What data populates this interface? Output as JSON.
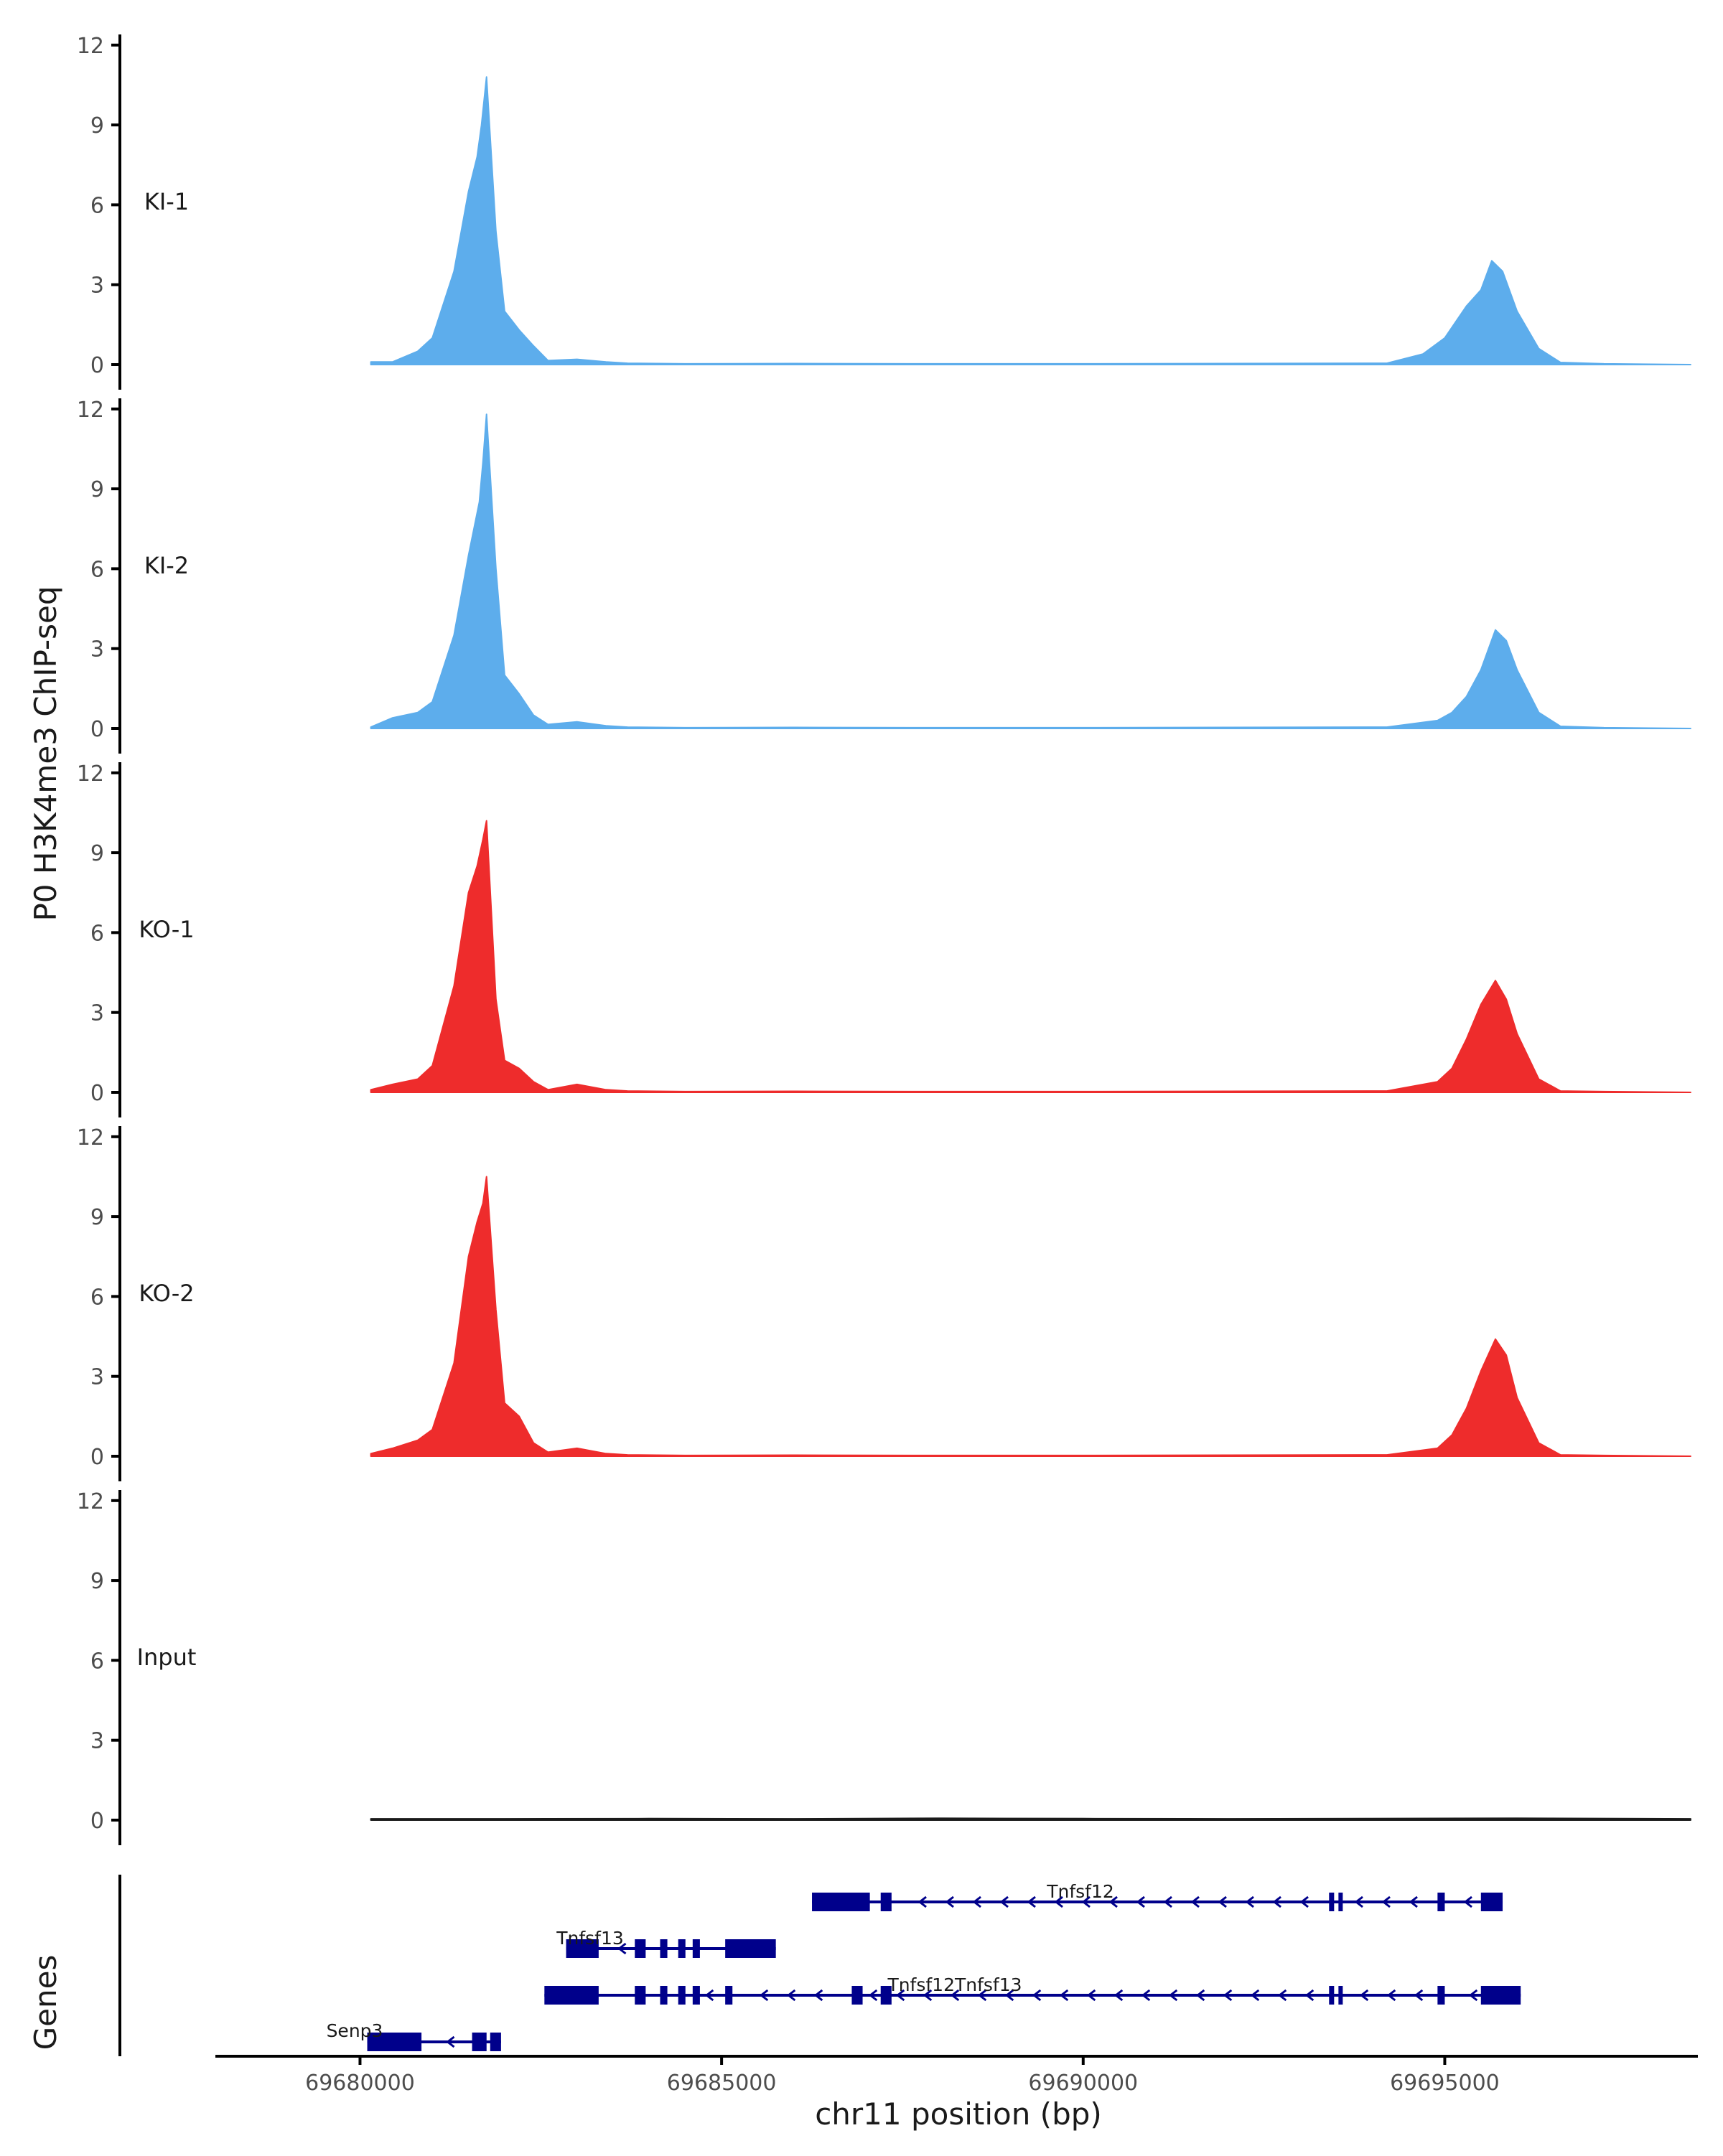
{
  "chart_data": {
    "type": "area",
    "title": "",
    "ylabel": "P0 H3K4me3 ChIP-seq",
    "xlabel": "chr11 position (bp)",
    "genes_label": "Genes",
    "xlim": [
      69678000,
      69698500
    ],
    "x_ticks": [
      69680000,
      69685000,
      69690000,
      69695000
    ],
    "x_tick_labels": [
      "69680000",
      "69685000",
      "69690000",
      "69695000"
    ],
    "ylim": [
      0,
      12
    ],
    "y_ticks": [
      0,
      3,
      6,
      9,
      12
    ],
    "y_tick_labels": [
      "0",
      "3",
      "6",
      "9",
      "12"
    ],
    "colors": {
      "KI": "#5dadec",
      "KO": "#ee2c2c",
      "Input": "#1a1a1a",
      "gene": "#00008b",
      "axis": "#000000"
    },
    "tracks": [
      {
        "name": "KI-1",
        "color": "#5dadec",
        "x": [
          69680150,
          69680450,
          69680800,
          69681000,
          69681300,
          69681500,
          69681620,
          69681680,
          69681750,
          69681880,
          69682000,
          69682200,
          69682400,
          69682600,
          69683000,
          69683400,
          69683700,
          69684500,
          69686000,
          69688000,
          69690000,
          69692000,
          69694200,
          69694700,
          69695000,
          69695300,
          69695500,
          69695650,
          69695800,
          69696000,
          69696300,
          69696600,
          69697200,
          69698400
        ],
        "y": [
          0.1,
          0.1,
          0.5,
          1.0,
          3.5,
          6.5,
          7.8,
          9.0,
          10.8,
          5.0,
          2.0,
          1.3,
          0.7,
          0.15,
          0.2,
          0.1,
          0.05,
          0.03,
          0.04,
          0.03,
          0.03,
          0.04,
          0.05,
          0.4,
          1.0,
          2.2,
          2.8,
          3.9,
          3.5,
          2.0,
          0.6,
          0.08,
          0.03,
          0.0
        ]
      },
      {
        "name": "KI-2",
        "color": "#5dadec",
        "x": [
          69680150,
          69680450,
          69680800,
          69681000,
          69681300,
          69681500,
          69681650,
          69681700,
          69681750,
          69681880,
          69682000,
          69682200,
          69682400,
          69682600,
          69683000,
          69683400,
          69683700,
          69684500,
          69686000,
          69688000,
          69690000,
          69692000,
          69694200,
          69694900,
          69695100,
          69695300,
          69695500,
          69695700,
          69695850,
          69696000,
          69696300,
          69696600,
          69697200,
          69698400
        ],
        "y": [
          0.05,
          0.4,
          0.6,
          1.0,
          3.5,
          6.5,
          8.5,
          10.0,
          11.8,
          6.0,
          2.0,
          1.3,
          0.5,
          0.15,
          0.25,
          0.1,
          0.05,
          0.03,
          0.04,
          0.03,
          0.03,
          0.04,
          0.05,
          0.3,
          0.6,
          1.2,
          2.2,
          3.7,
          3.3,
          2.2,
          0.6,
          0.08,
          0.03,
          0.0
        ]
      },
      {
        "name": "KO-1",
        "color": "#ee2c2c",
        "x": [
          69680150,
          69680450,
          69680800,
          69681000,
          69681300,
          69681500,
          69681620,
          69681700,
          69681750,
          69681880,
          69682000,
          69682200,
          69682400,
          69682600,
          69683000,
          69683400,
          69683700,
          69684500,
          69686000,
          69688000,
          69690000,
          69692000,
          69694200,
          69694900,
          69695100,
          69695300,
          69695500,
          69695700,
          69695850,
          69696000,
          69696300,
          69696600,
          69697200,
          69698400
        ],
        "y": [
          0.1,
          0.3,
          0.5,
          1.0,
          4.0,
          7.5,
          8.5,
          9.5,
          10.2,
          3.5,
          1.2,
          0.9,
          0.4,
          0.1,
          0.3,
          0.1,
          0.05,
          0.03,
          0.04,
          0.03,
          0.03,
          0.04,
          0.05,
          0.4,
          0.9,
          2.0,
          3.3,
          4.2,
          3.5,
          2.2,
          0.5,
          0.05,
          0.03,
          0.0
        ]
      },
      {
        "name": "KO-2",
        "color": "#ee2c2c",
        "x": [
          69680150,
          69680450,
          69680800,
          69681000,
          69681300,
          69681500,
          69681620,
          69681700,
          69681750,
          69681880,
          69682000,
          69682200,
          69682400,
          69682600,
          69683000,
          69683400,
          69683700,
          69684500,
          69686000,
          69688000,
          69690000,
          69692000,
          69694200,
          69694900,
          69695100,
          69695300,
          69695500,
          69695700,
          69695850,
          69696000,
          69696300,
          69696600,
          69697200,
          69698400
        ],
        "y": [
          0.1,
          0.3,
          0.6,
          1.0,
          3.5,
          7.5,
          8.8,
          9.5,
          10.5,
          5.5,
          2.0,
          1.5,
          0.5,
          0.15,
          0.3,
          0.1,
          0.05,
          0.03,
          0.04,
          0.03,
          0.03,
          0.04,
          0.05,
          0.3,
          0.8,
          1.8,
          3.2,
          4.4,
          3.8,
          2.2,
          0.5,
          0.05,
          0.03,
          0.0
        ]
      },
      {
        "name": "Input",
        "color": "#1a1a1a",
        "x": [
          69680150,
          69682000,
          69684000,
          69686000,
          69688000,
          69690000,
          69692000,
          69694000,
          69696000,
          69698400
        ],
        "y": [
          0.05,
          0.05,
          0.06,
          0.05,
          0.07,
          0.06,
          0.05,
          0.06,
          0.07,
          0.05
        ]
      }
    ],
    "genes": [
      {
        "name": "Tnfsf12",
        "row": 1,
        "start": 69686250,
        "end": 69695800,
        "exons": [
          [
            69686250,
            69687050
          ],
          [
            69687200,
            69687350
          ],
          [
            69693400,
            69693470
          ],
          [
            69693530,
            69693580
          ],
          [
            69694900,
            69695000
          ],
          [
            69695500,
            69695800
          ]
        ]
      },
      {
        "name": "Tnfsf13",
        "row": 2,
        "start": 69682850,
        "end": 69685750,
        "exons": [
          [
            69682850,
            69683300
          ],
          [
            69683800,
            69683950
          ],
          [
            69684150,
            69684250
          ],
          [
            69684400,
            69684500
          ],
          [
            69684600,
            69684700
          ],
          [
            69685050,
            69685750
          ]
        ]
      },
      {
        "name": "Tnfsf12Tnfsf13",
        "row": 3,
        "start": 69682550,
        "end": 69696050,
        "exons": [
          [
            69682550,
            69683300
          ],
          [
            69683800,
            69683950
          ],
          [
            69684150,
            69684250
          ],
          [
            69684400,
            69684500
          ],
          [
            69684600,
            69684700
          ],
          [
            69685050,
            69685150
          ],
          [
            69686800,
            69686950
          ],
          [
            69687200,
            69687350
          ],
          [
            69693400,
            69693470
          ],
          [
            69693530,
            69693580
          ],
          [
            69694900,
            69695000
          ],
          [
            69695500,
            69696050
          ]
        ]
      },
      {
        "name": "Senp3",
        "row": 4,
        "start": 69680100,
        "end": 69681950,
        "exons": [
          [
            69680100,
            69680850
          ],
          [
            69681550,
            69681750
          ],
          [
            69681800,
            69681950
          ]
        ]
      }
    ]
  }
}
